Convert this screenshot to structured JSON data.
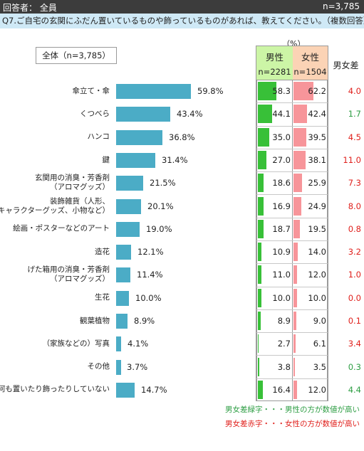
{
  "header": {
    "respondents_label": "回答者： 全員",
    "n_label": "n=3,785"
  },
  "question": "Q7.ご自宅の玄関にふだん置いているものや飾っているものがあれば、教えてください。（複数回答）",
  "total_label": "全体（n=3,785）",
  "unit_label": "（%）",
  "columns": {
    "male_title": "男性",
    "male_n": "n=2281",
    "female_title": "女性",
    "female_n": "n=1504",
    "diff_title": "男女差"
  },
  "colors": {
    "total_bar": "#4bacc6",
    "male_bar": "#38c038",
    "female_bar": "#f7959a",
    "diff_green": "#2e9e44",
    "diff_red": "#e0201c"
  },
  "notes": {
    "green": "男女差緑字・・・男性の方が数値が高い",
    "red": "男女差赤字・・・女性の方が数値が高い"
  },
  "chart_data": {
    "type": "bar",
    "orientation": "horizontal",
    "categories": [
      [
        "傘立て・傘"
      ],
      [
        "くつべら"
      ],
      [
        "ハンコ"
      ],
      [
        "鍵"
      ],
      [
        "玄関用の消臭・芳香剤",
        "（アロマグッズ）"
      ],
      [
        "装飾雑貨（人形、",
        "キャラクターグッズ、小物など）"
      ],
      [
        "絵画・ポスターなどのアート"
      ],
      [
        "造花"
      ],
      [
        "げた箱用の消臭・芳香剤",
        "（アロマグッズ）"
      ],
      [
        "生花"
      ],
      [
        "観葉植物"
      ],
      [
        "（家族などの）写真"
      ],
      [
        "その他"
      ],
      [
        "何も置いたり飾ったりしていない"
      ]
    ],
    "total": [
      "59.8%",
      "43.4%",
      "36.8%",
      "31.4%",
      "21.5%",
      "20.1%",
      "19.0%",
      "12.1%",
      "11.4%",
      "10.0%",
      "8.9%",
      "4.1%",
      "3.7%",
      "14.7%"
    ],
    "male": [
      "58.3",
      "44.1",
      "35.0",
      "27.0",
      "18.6",
      "16.9",
      "18.7",
      "10.9",
      "11.0",
      "10.0",
      "8.9",
      "2.7",
      "3.8",
      "16.4"
    ],
    "female": [
      "62.2",
      "42.4",
      "39.5",
      "38.1",
      "25.9",
      "24.9",
      "19.5",
      "14.0",
      "12.0",
      "10.0",
      "9.0",
      "6.1",
      "3.5",
      "12.0"
    ],
    "diff": [
      "4.0",
      "1.7",
      "4.5",
      "11.0",
      "7.3",
      "8.0",
      "0.8",
      "3.2",
      "1.0",
      "0.0",
      "0.1",
      "3.4",
      "0.3",
      "4.4"
    ],
    "diff_color": [
      "red",
      "green",
      "red",
      "red",
      "red",
      "red",
      "red",
      "red",
      "red",
      "red",
      "red",
      "red",
      "green",
      "green"
    ]
  }
}
